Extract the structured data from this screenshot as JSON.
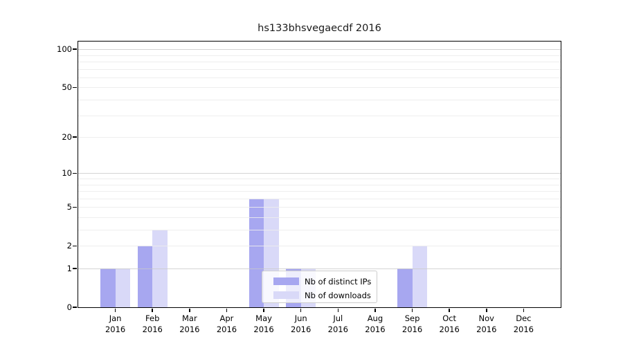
{
  "chart_data": {
    "type": "bar",
    "title": "hs133bhsvegaecdf 2016",
    "categories": [
      "Jan 2016",
      "Feb 2016",
      "Mar 2016",
      "Apr 2016",
      "May 2016",
      "Jun 2016",
      "Jul 2016",
      "Aug 2016",
      "Sep 2016",
      "Oct 2016",
      "Nov 2016",
      "Dec 2016"
    ],
    "series": [
      {
        "name": "Nb of distinct IPs",
        "color": "#a7a7f0",
        "values": [
          1,
          2,
          0,
          0,
          6,
          1,
          0,
          0,
          1,
          0,
          0,
          0
        ]
      },
      {
        "name": "Nb of downloads",
        "color": "#d9d9f8",
        "values": [
          1,
          3,
          0,
          0,
          6,
          1,
          0,
          0,
          2,
          0,
          0,
          0
        ]
      }
    ],
    "xlabel": "",
    "ylabel": "",
    "y_ticks": [
      0,
      1,
      2,
      5,
      10,
      20,
      50,
      100
    ],
    "grid_minor_values": [
      2,
      3,
      4,
      5,
      6,
      7,
      8,
      9,
      20,
      30,
      40,
      50,
      60,
      70,
      80,
      90
    ],
    "grid_major_values": [
      1,
      10,
      100
    ],
    "scale": "log1p",
    "ylim": [
      0,
      115
    ],
    "grid": true,
    "legend_position": "lower center"
  },
  "colors": {
    "distinct_ips": "#a7a7f0",
    "downloads": "#d9d9f8",
    "grid_minor": "#ececec",
    "grid_major": "#c9c9c9",
    "axis": "#000000",
    "legend_border": "#cccccc",
    "background": "#ffffff"
  }
}
